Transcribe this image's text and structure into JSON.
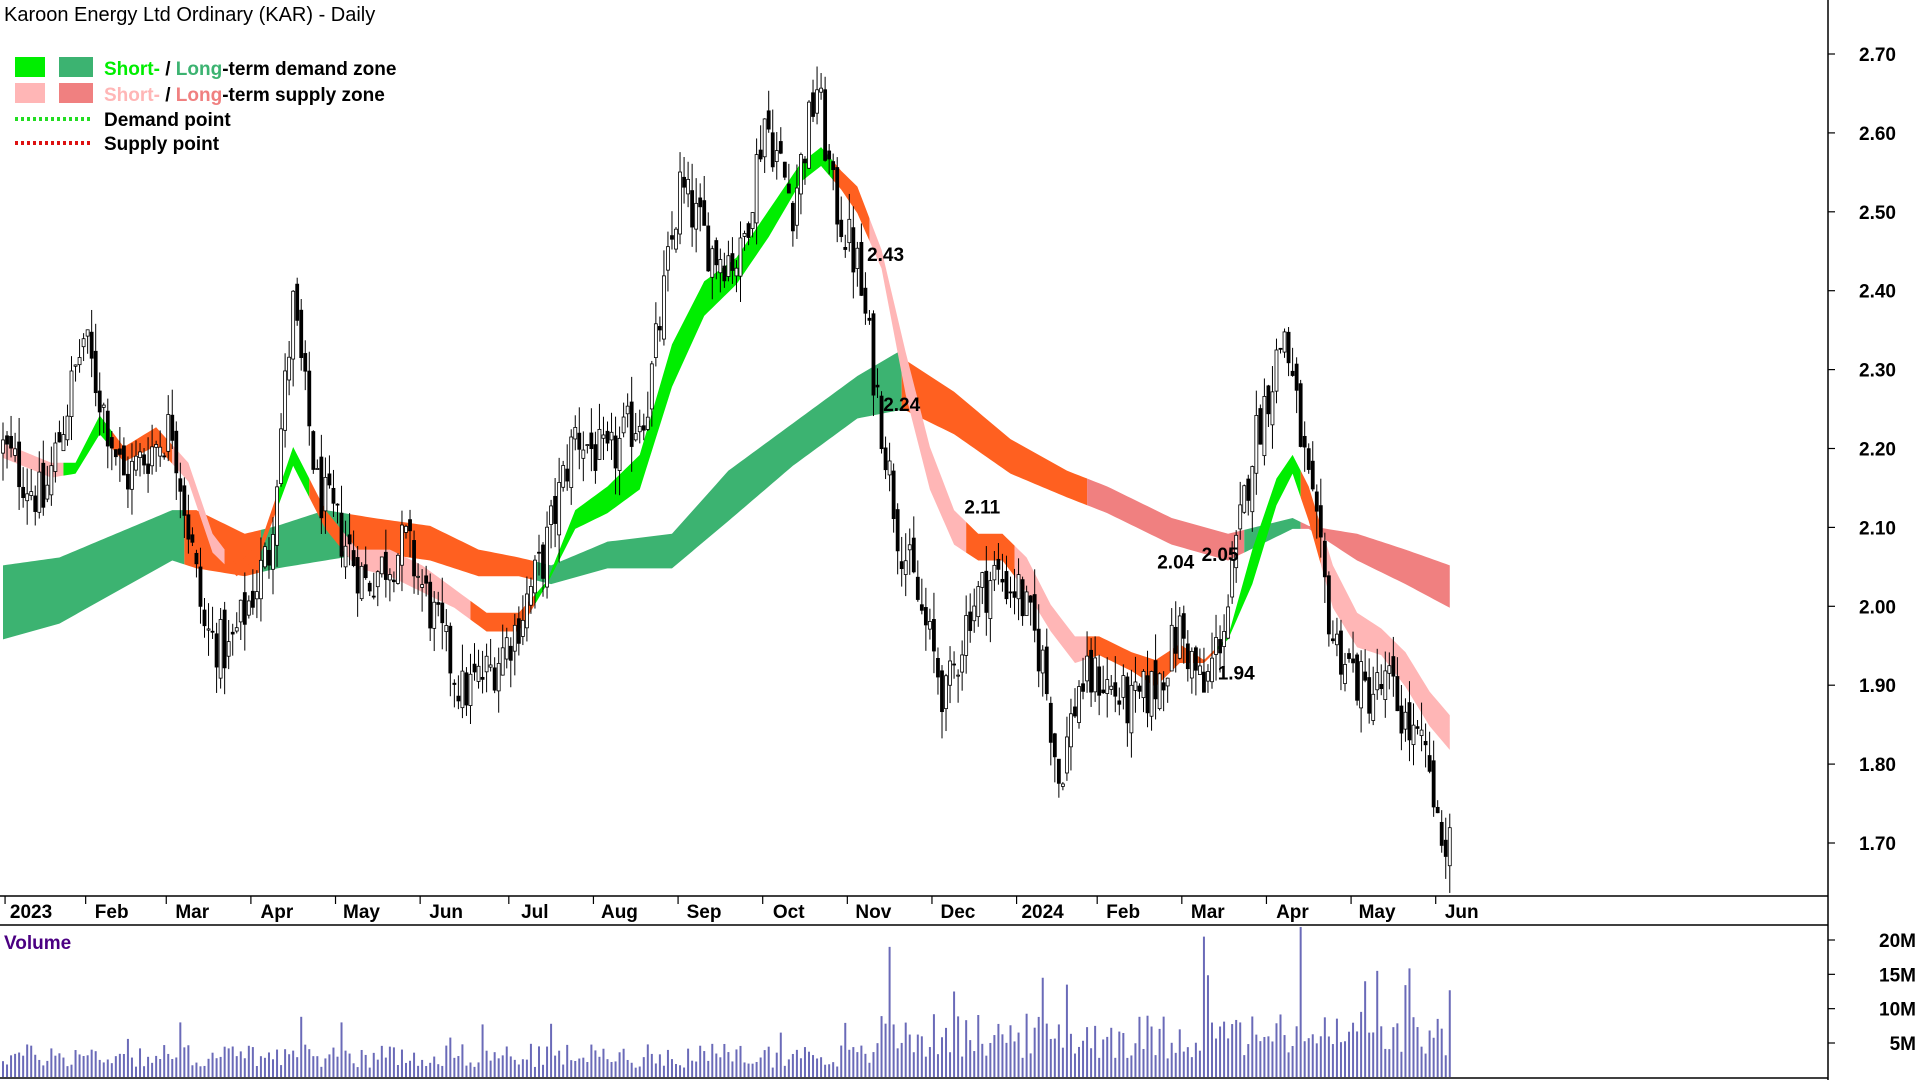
{
  "chart_data": {
    "type": "candlestick",
    "title": "Karoon Energy Ltd Ordinary (KAR) - Daily",
    "legend": {
      "demand_zone": {
        "short": "Short-",
        "sep": " / ",
        "long": "Long",
        "suffix": "-term demand zone"
      },
      "supply_zone": {
        "short": "Short-",
        "sep": " / ",
        "long": "Long",
        "suffix": "-term supply zone"
      },
      "demand_point": "Demand point",
      "supply_point": "Supply point"
    },
    "colors": {
      "short_demand": "#00ee00",
      "long_demand": "#3cb371",
      "short_supply": "#ffb6b6",
      "long_supply": "#f08080",
      "orange_supply": "#ff6020",
      "demand_point": "#22dd22",
      "supply_point": "#dd1111",
      "volume_bar": "#6a6ab8",
      "volume_label": "#4b0082"
    },
    "price_axis": {
      "min": 1.64,
      "max": 2.74,
      "ticks": [
        "2.70",
        "2.60",
        "2.50",
        "2.40",
        "2.30",
        "2.20",
        "2.10",
        "2.00",
        "1.90",
        "1.80",
        "1.70"
      ]
    },
    "x_axis": {
      "labels": [
        "2023",
        "Feb",
        "Mar",
        "Apr",
        "May",
        "Jun",
        "Jul",
        "Aug",
        "Sep",
        "Oct",
        "Nov",
        "Dec",
        "2024",
        "Feb",
        "Mar",
        "Apr",
        "May",
        "Jun"
      ],
      "label_index": [
        2,
        22,
        42,
        63,
        84,
        105,
        127,
        148,
        169,
        190,
        211,
        232,
        253,
        273,
        294,
        315,
        336,
        357
      ]
    },
    "price_path": [
      [
        0,
        2.2
      ],
      [
        10,
        2.13
      ],
      [
        20,
        2.34
      ],
      [
        30,
        2.16
      ],
      [
        42,
        2.23
      ],
      [
        50,
        1.97
      ],
      [
        56,
        1.94
      ],
      [
        66,
        2.07
      ],
      [
        72,
        2.38
      ],
      [
        78,
        2.15
      ],
      [
        84,
        2.09
      ],
      [
        90,
        2.03
      ],
      [
        100,
        2.08
      ],
      [
        108,
        1.97
      ],
      [
        114,
        1.89
      ],
      [
        121,
        1.92
      ],
      [
        127,
        1.97
      ],
      [
        134,
        2.06
      ],
      [
        142,
        2.22
      ],
      [
        150,
        2.18
      ],
      [
        160,
        2.26
      ],
      [
        168,
        2.53
      ],
      [
        176,
        2.45
      ],
      [
        183,
        2.44
      ],
      [
        189,
        2.62
      ],
      [
        196,
        2.51
      ],
      [
        202,
        2.66
      ],
      [
        206,
        2.52
      ],
      [
        212,
        2.43
      ],
      [
        216,
        2.3
      ],
      [
        222,
        2.1
      ],
      [
        228,
        1.99
      ],
      [
        234,
        1.88
      ],
      [
        240,
        2.0
      ],
      [
        246,
        2.04
      ],
      [
        252,
        2.02
      ],
      [
        258,
        1.93
      ],
      [
        262,
        1.78
      ],
      [
        267,
        1.9
      ],
      [
        272,
        1.91
      ],
      [
        280,
        1.87
      ],
      [
        286,
        1.9
      ],
      [
        292,
        1.97
      ],
      [
        298,
        1.89
      ],
      [
        304,
        2.0
      ],
      [
        310,
        2.2
      ],
      [
        318,
        2.35
      ],
      [
        324,
        2.15
      ],
      [
        330,
        1.96
      ],
      [
        338,
        1.89
      ],
      [
        344,
        1.9
      ],
      [
        350,
        1.83
      ],
      [
        354,
        1.8
      ],
      [
        356,
        1.72
      ],
      [
        358,
        1.7
      ]
    ],
    "gaps_after_index": [
      353
    ],
    "zones": {
      "short": [
        [
          0,
          2.205,
          2.19,
          "supply_light"
        ],
        [
          12,
          2.18,
          2.165,
          "supply_light"
        ],
        [
          18,
          2.18,
          2.17,
          "demand"
        ],
        [
          24,
          2.24,
          2.22,
          "demand"
        ],
        [
          30,
          2.2,
          2.185,
          "orange"
        ],
        [
          38,
          2.225,
          2.205,
          "orange"
        ],
        [
          46,
          2.18,
          2.16,
          "supply_light"
        ],
        [
          52,
          2.09,
          2.07,
          "supply_light"
        ],
        [
          58,
          2.05,
          2.04,
          "orange"
        ],
        [
          64,
          2.08,
          2.07,
          "orange"
        ],
        [
          72,
          2.2,
          2.18,
          "demand"
        ],
        [
          80,
          2.12,
          2.1,
          "orange"
        ],
        [
          88,
          2.07,
          2.05,
          "supply_light"
        ],
        [
          96,
          2.07,
          2.04,
          "supply_light"
        ],
        [
          104,
          2.05,
          2.02,
          "supply_light"
        ],
        [
          112,
          2.02,
          2.0,
          "supply_light"
        ],
        [
          120,
          1.99,
          1.97,
          "orange"
        ],
        [
          128,
          1.99,
          1.97,
          "orange"
        ],
        [
          135,
          2.03,
          2.03,
          "demand"
        ],
        [
          142,
          2.12,
          2.1,
          "demand"
        ],
        [
          150,
          2.15,
          2.12,
          "demand"
        ],
        [
          158,
          2.19,
          2.15,
          "demand"
        ],
        [
          166,
          2.33,
          2.28,
          "demand"
        ],
        [
          174,
          2.41,
          2.37,
          "demand"
        ],
        [
          182,
          2.44,
          2.41,
          "demand"
        ],
        [
          190,
          2.5,
          2.47,
          "demand"
        ],
        [
          198,
          2.56,
          2.54,
          "demand"
        ],
        [
          203,
          2.58,
          2.56,
          "demand"
        ],
        [
          208,
          2.55,
          2.53,
          "orange"
        ],
        [
          212,
          2.53,
          2.5,
          "orange"
        ],
        [
          218,
          2.45,
          2.43,
          "supply_light"
        ],
        [
          224,
          2.32,
          2.27,
          "supply_light"
        ],
        [
          230,
          2.2,
          2.15,
          "supply_light"
        ],
        [
          236,
          2.12,
          2.08,
          "supply_light"
        ],
        [
          242,
          2.09,
          2.06,
          "orange"
        ],
        [
          248,
          2.09,
          2.06,
          "orange"
        ],
        [
          254,
          2.06,
          2.02,
          "supply_light"
        ],
        [
          260,
          2.0,
          1.97,
          "supply_light"
        ],
        [
          266,
          1.96,
          1.93,
          "supply_light"
        ],
        [
          272,
          1.96,
          1.94,
          "orange"
        ],
        [
          280,
          1.94,
          1.92,
          "orange"
        ],
        [
          286,
          1.93,
          1.9,
          "orange"
        ],
        [
          292,
          1.95,
          1.93,
          "orange"
        ],
        [
          298,
          1.93,
          1.93,
          "orange"
        ],
        [
          304,
          1.96,
          1.96,
          "demand"
        ],
        [
          310,
          2.07,
          2.03,
          "demand"
        ],
        [
          316,
          2.16,
          2.13,
          "demand"
        ],
        [
          320,
          2.19,
          2.17,
          "demand"
        ],
        [
          324,
          2.15,
          2.11,
          "orange"
        ],
        [
          330,
          2.05,
          2.0,
          "supply_light"
        ],
        [
          336,
          1.99,
          1.95,
          "supply_light"
        ],
        [
          342,
          1.97,
          1.94,
          "supply_light"
        ],
        [
          348,
          1.94,
          1.9,
          "supply_light"
        ],
        [
          354,
          1.89,
          1.85,
          "supply_light"
        ],
        [
          359,
          1.86,
          1.82,
          "supply_light"
        ]
      ],
      "long": [
        [
          0,
          2.05,
          1.96,
          "demand"
        ],
        [
          14,
          2.06,
          1.98,
          "demand"
        ],
        [
          28,
          2.09,
          2.02,
          "demand"
        ],
        [
          42,
          2.12,
          2.06,
          "demand"
        ],
        [
          48,
          2.12,
          2.05,
          "orange"
        ],
        [
          60,
          2.09,
          2.04,
          "orange"
        ],
        [
          68,
          2.1,
          2.05,
          "demand"
        ],
        [
          80,
          2.12,
          2.06,
          "demand"
        ],
        [
          92,
          2.11,
          2.07,
          "orange"
        ],
        [
          106,
          2.1,
          2.06,
          "orange"
        ],
        [
          118,
          2.07,
          2.04,
          "orange"
        ],
        [
          128,
          2.06,
          2.04,
          "orange"
        ],
        [
          136,
          2.05,
          2.03,
          "demand"
        ],
        [
          150,
          2.08,
          2.05,
          "demand"
        ],
        [
          166,
          2.09,
          2.05,
          "demand"
        ],
        [
          180,
          2.17,
          2.11,
          "demand"
        ],
        [
          196,
          2.23,
          2.18,
          "demand"
        ],
        [
          212,
          2.29,
          2.24,
          "demand"
        ],
        [
          222,
          2.32,
          2.25,
          "demand"
        ],
        [
          224,
          2.31,
          2.25,
          "orange"
        ],
        [
          236,
          2.27,
          2.22,
          "orange"
        ],
        [
          250,
          2.21,
          2.17,
          "orange"
        ],
        [
          264,
          2.17,
          2.14,
          "orange"
        ],
        [
          274,
          2.15,
          2.12,
          "supply_dark"
        ],
        [
          290,
          2.11,
          2.08,
          "supply_dark"
        ],
        [
          304,
          2.09,
          2.06,
          "supply_dark"
        ],
        [
          312,
          2.1,
          2.08,
          "demand"
        ],
        [
          320,
          2.11,
          2.1,
          "demand"
        ],
        [
          324,
          2.1,
          2.1,
          "supply_dark"
        ],
        [
          336,
          2.09,
          2.06,
          "supply_dark"
        ],
        [
          348,
          2.07,
          2.03,
          "supply_dark"
        ],
        [
          359,
          2.05,
          2.0,
          "supply_dark"
        ]
      ]
    },
    "annotations": [
      {
        "text": "2.43",
        "x_index": 219,
        "price": 2.43,
        "pos": "above"
      },
      {
        "text": "2.24",
        "x_index": 223,
        "price": 2.24,
        "pos": "above"
      },
      {
        "text": "2.11",
        "x_index": 243,
        "price": 2.11,
        "pos": "above"
      },
      {
        "text": "2.04",
        "x_index": 291,
        "price": 2.04,
        "pos": "above"
      },
      {
        "text": "2.05",
        "x_index": 302,
        "price": 2.05,
        "pos": "above"
      },
      {
        "text": "1.94",
        "x_index": 306,
        "price": 1.94,
        "pos": "below"
      }
    ],
    "volume": {
      "label": "Volume",
      "max": 21000000,
      "ticks": [
        "20M",
        "15M",
        "10M",
        "5M"
      ],
      "tick_values": [
        20000000,
        15000000,
        10000000,
        5000000
      ],
      "spikes": [
        [
          44,
          8000000
        ],
        [
          84,
          8000000
        ],
        [
          220,
          19000000
        ],
        [
          298,
          20500000
        ],
        [
          322,
          14500000
        ],
        [
          338,
          14000000
        ],
        [
          258,
          14500000
        ],
        [
          264,
          13500000
        ],
        [
          236,
          12500000
        ]
      ],
      "base": 3500000
    }
  }
}
